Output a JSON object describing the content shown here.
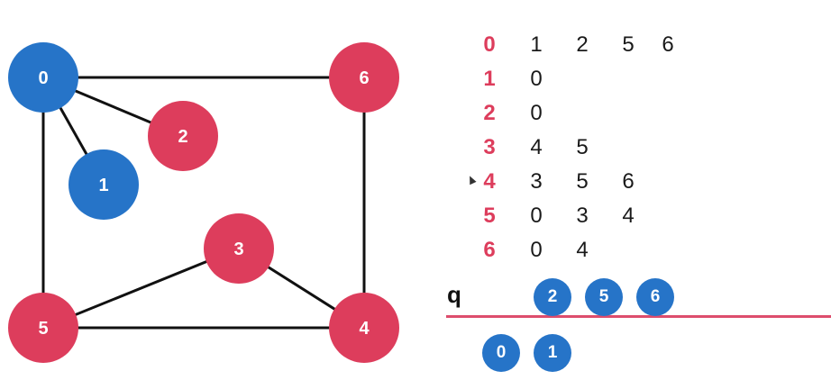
{
  "colors": {
    "visited": "#2674c8",
    "unvisited": "#dd3d5c",
    "edge": "#111111",
    "queue_line": "#dd4d6d"
  },
  "graph": {
    "nodes": [
      {
        "id": "0",
        "state": "visited"
      },
      {
        "id": "1",
        "state": "visited"
      },
      {
        "id": "2",
        "state": "unvisited"
      },
      {
        "id": "3",
        "state": "unvisited"
      },
      {
        "id": "4",
        "state": "unvisited"
      },
      {
        "id": "5",
        "state": "unvisited"
      },
      {
        "id": "6",
        "state": "unvisited"
      }
    ],
    "edges": [
      [
        "0",
        "6"
      ],
      [
        "0",
        "2"
      ],
      [
        "0",
        "1"
      ],
      [
        "0",
        "5"
      ],
      [
        "6",
        "4"
      ],
      [
        "5",
        "4"
      ],
      [
        "5",
        "3"
      ],
      [
        "3",
        "4"
      ]
    ]
  },
  "adjacency": [
    {
      "vertex": "0",
      "neighbors": [
        "1",
        "2",
        "5",
        "6"
      ]
    },
    {
      "vertex": "1",
      "neighbors": [
        "0"
      ]
    },
    {
      "vertex": "2",
      "neighbors": [
        "0"
      ]
    },
    {
      "vertex": "3",
      "neighbors": [
        "4",
        "5"
      ]
    },
    {
      "vertex": "4",
      "neighbors": [
        "3",
        "5",
        "6"
      ]
    },
    {
      "vertex": "5",
      "neighbors": [
        "0",
        "3",
        "4"
      ]
    },
    {
      "vertex": "6",
      "neighbors": [
        "0",
        "4"
      ]
    }
  ],
  "queue": {
    "label": "q",
    "items": [
      "2",
      "5",
      "6"
    ],
    "dequeued": [
      "0",
      "1"
    ]
  }
}
